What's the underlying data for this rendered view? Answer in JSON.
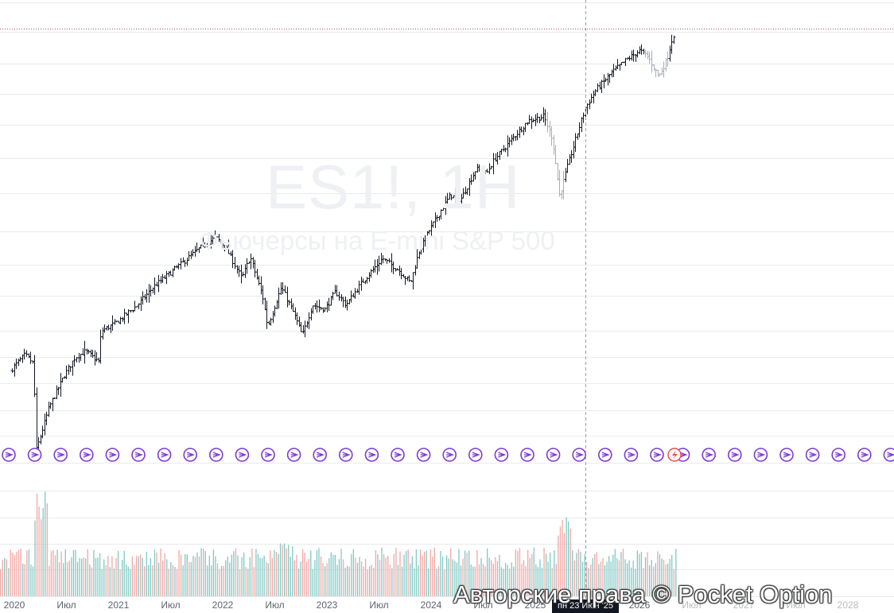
{
  "watermark": {
    "symbol": "ES1!, 1Н",
    "description": "Фьючерсы на E-mini S&P 500"
  },
  "crosshair": {
    "label": "пн 23 Июн '25"
  },
  "copyright": "Авторские права © Pocket Option",
  "colors": {
    "bar": "#131722",
    "bar_faded": "#a9adb8",
    "vol_up": "#7fc9c4",
    "vol_down": "#f2a7a5",
    "event_icon": "#7e3bd1",
    "alert_icon": "#ef4b4b",
    "crosshair": "#9aa0ab",
    "last_price": "#9b5a6b"
  },
  "icons": [
    "arrow-right-circle-icon",
    "lightning-icon"
  ],
  "chart_data": {
    "type": "ohlc",
    "title": "",
    "grid": true,
    "x_unit": "year (decimal)",
    "x_range": [
      2020.0,
      2029.1
    ],
    "y_range": [
      2150,
      7100
    ],
    "x_tick_labels": [
      {
        "label": "2020",
        "x": 2020.0
      },
      {
        "label": "Июл",
        "x": 2020.5
      },
      {
        "label": "2021",
        "x": 2021.0
      },
      {
        "label": "Июл",
        "x": 2021.5
      },
      {
        "label": "2022",
        "x": 2022.0
      },
      {
        "label": "Июл",
        "x": 2022.5
      },
      {
        "label": "2023",
        "x": 2023.0
      },
      {
        "label": "Июл",
        "x": 2023.5
      },
      {
        "label": "2024",
        "x": 2024.0
      },
      {
        "label": "Июл",
        "x": 2024.5
      },
      {
        "label": "2025",
        "x": 2025.0
      },
      {
        "label": "2026",
        "x": 2026.0
      },
      {
        "label": "Июл",
        "x": 2026.5
      },
      {
        "label": "2027",
        "x": 2027.0
      },
      {
        "label": "Июл",
        "x": 2027.5
      },
      {
        "label": "2028",
        "x": 2028.0
      }
    ],
    "future_from_x": 2026.5,
    "crosshair_x": 2025.48,
    "last_price": 7000,
    "price_path": [
      [
        2019.98,
        3200
      ],
      [
        2020.12,
        3380
      ],
      [
        2020.2,
        3280
      ],
      [
        2020.23,
        2300
      ],
      [
        2020.35,
        2780
      ],
      [
        2020.5,
        3150
      ],
      [
        2020.6,
        3350
      ],
      [
        2020.7,
        3420
      ],
      [
        2020.83,
        3300
      ],
      [
        2020.85,
        3650
      ],
      [
        2021.0,
        3750
      ],
      [
        2021.2,
        3950
      ],
      [
        2021.35,
        4150
      ],
      [
        2021.5,
        4300
      ],
      [
        2021.65,
        4450
      ],
      [
        2021.8,
        4600
      ],
      [
        2021.95,
        4720
      ],
      [
        2022.05,
        4600
      ],
      [
        2022.2,
        4250
      ],
      [
        2022.28,
        4500
      ],
      [
        2022.4,
        4050
      ],
      [
        2022.45,
        3700
      ],
      [
        2022.58,
        4150
      ],
      [
        2022.7,
        3850
      ],
      [
        2022.78,
        3600
      ],
      [
        2022.88,
        3950
      ],
      [
        2023.0,
        3900
      ],
      [
        2023.1,
        4100
      ],
      [
        2023.2,
        3950
      ],
      [
        2023.35,
        4200
      ],
      [
        2023.55,
        4480
      ],
      [
        2023.7,
        4350
      ],
      [
        2023.82,
        4200
      ],
      [
        2023.9,
        4550
      ],
      [
        2024.0,
        4800
      ],
      [
        2024.2,
        5200
      ],
      [
        2024.3,
        5150
      ],
      [
        2024.45,
        5500
      ],
      [
        2024.55,
        5450
      ],
      [
        2024.62,
        5600
      ],
      [
        2024.8,
        5850
      ],
      [
        2024.95,
        6050
      ],
      [
        2025.1,
        6100
      ],
      [
        2025.18,
        5850
      ],
      [
        2025.25,
        5200
      ],
      [
        2025.32,
        5500
      ],
      [
        2025.42,
        5900
      ],
      [
        2025.5,
        6200
      ],
      [
        2025.6,
        6400
      ],
      [
        2025.75,
        6600
      ],
      [
        2025.9,
        6750
      ],
      [
        2026.02,
        6850
      ],
      [
        2026.1,
        6780
      ],
      [
        2026.2,
        6550
      ],
      [
        2026.28,
        6750
      ],
      [
        2026.34,
        7030
      ]
    ],
    "volume_scale": [
      0,
      100
    ]
  }
}
